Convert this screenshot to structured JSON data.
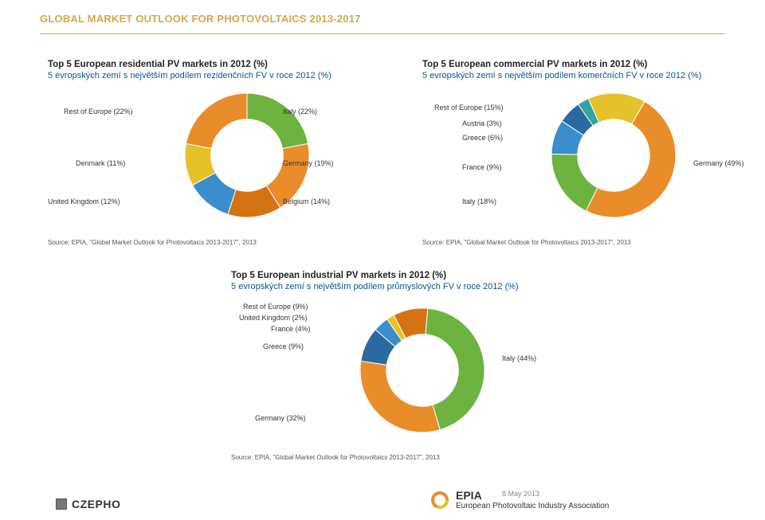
{
  "page_title": "GLOBAL MARKET OUTLOOK FOR PHOTOVOLTAICS 2013-2017",
  "date": "8 May 2013",
  "logos": {
    "czepho": "CZEPHO",
    "epia_main": "EPIA",
    "epia_sub": "European Photovoltaic Industry Association"
  },
  "source_line": "Source: EPIA, \"Global Market Outlook for Photovoltaics 2013-2017\", 2013",
  "donut": {
    "inner_ratio": 0.58,
    "stroke": "#ffffff",
    "stroke_width": 1
  },
  "colors": {
    "orange": "#e98d2a",
    "green": "#6cb33f",
    "blue": "#3b8ecb",
    "dkorange": "#d47214",
    "yellow": "#e5c229",
    "dblue": "#2b6aa0",
    "teal": "#35a29f"
  },
  "charts": {
    "residential": {
      "title": "Top 5 European residential PV markets in 2012 (%)",
      "subtitle": "5 evropských zemí s největším podílem rezidenčních FV v roce 2012 (%)",
      "slices": [
        {
          "label": "Italy (22%)",
          "value": 22,
          "color": "#6cb33f"
        },
        {
          "label": "Germany (19%)",
          "value": 19,
          "color": "#e98d2a"
        },
        {
          "label": "Belgium (14%)",
          "value": 14,
          "color": "#d47214"
        },
        {
          "label": "United Kingdom (12%)",
          "value": 12,
          "color": "#3b8ecb"
        },
        {
          "label": "Denmark (11%)",
          "value": 11,
          "color": "#e5c229"
        },
        {
          "label": "Rest of Europe (22%)",
          "value": 22,
          "color": "#e98d2a"
        }
      ]
    },
    "commercial": {
      "title": "Top 5 European commercial PV markets in 2012 (%)",
      "subtitle": "5 evropských zemí s největším podílem komerčních FV v roce 2012 (%)",
      "slices": [
        {
          "label": "Germany (49%)",
          "value": 49,
          "color": "#e98d2a"
        },
        {
          "label": "Italy (18%)",
          "value": 18,
          "color": "#6cb33f"
        },
        {
          "label": "France (9%)",
          "value": 9,
          "color": "#3b8ecb"
        },
        {
          "label": "Greece (6%)",
          "value": 6,
          "color": "#2b6aa0"
        },
        {
          "label": "Austria (3%)",
          "value": 3,
          "color": "#35a29f"
        },
        {
          "label": "Rest of Europe (15%)",
          "value": 15,
          "color": "#e5c229"
        }
      ]
    },
    "industrial": {
      "title": "Top 5 European industrial PV markets in 2012 (%)",
      "subtitle": "5 evropských zemí s největším podílem průmyslových FV v roce 2012 (%)",
      "slices": [
        {
          "label": "Italy (44%)",
          "value": 44,
          "color": "#6cb33f"
        },
        {
          "label": "Germany (32%)",
          "value": 32,
          "color": "#e98d2a"
        },
        {
          "label": "Greece (9%)",
          "value": 9,
          "color": "#2b6aa0"
        },
        {
          "label": "France (4%)",
          "value": 4,
          "color": "#3b8ecb"
        },
        {
          "label": "United Kingdom (2%)",
          "value": 2,
          "color": "#e5c229"
        },
        {
          "label": "Rest of Europe (9%)",
          "value": 9,
          "color": "#d47214"
        }
      ]
    }
  }
}
